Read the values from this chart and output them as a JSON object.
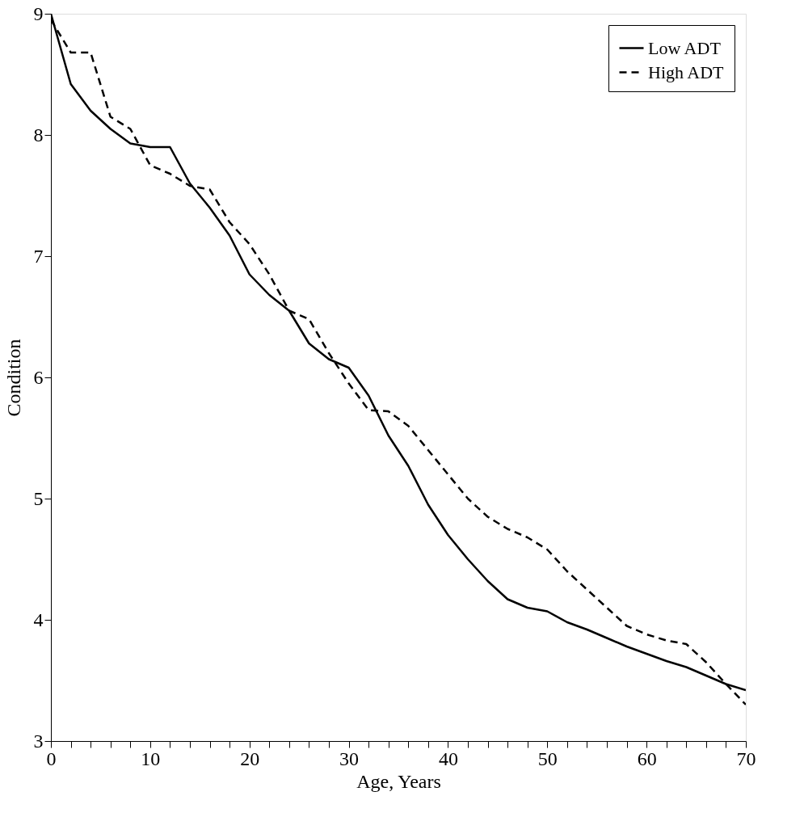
{
  "chart_data": {
    "type": "line",
    "xlabel": "Age, Years",
    "ylabel": "Condition",
    "legend": "top right",
    "x": [
      0,
      2,
      4,
      6,
      8,
      10,
      12,
      14,
      16,
      18,
      20,
      22,
      24,
      26,
      28,
      30,
      32,
      34,
      36,
      38,
      40,
      42,
      44,
      46,
      48,
      50,
      52,
      54,
      56,
      58,
      60,
      62,
      64,
      66,
      68,
      70
    ],
    "series": [
      {
        "name": "Low ADT",
        "color": "#000000",
        "line_style": "solid",
        "values": [
          9.0,
          8.42,
          8.2,
          8.05,
          7.93,
          7.9,
          7.9,
          7.6,
          7.4,
          7.17,
          6.85,
          6.68,
          6.55,
          6.28,
          6.15,
          6.08,
          5.85,
          5.52,
          5.27,
          4.95,
          4.7,
          4.5,
          4.32,
          4.17,
          4.1,
          4.07,
          3.98,
          3.92,
          3.85,
          3.78,
          3.72,
          3.66,
          3.61,
          3.54,
          3.47,
          3.42
        ]
      },
      {
        "name": "High ADT",
        "color": "#000000",
        "line_style": "dashed",
        "values": [
          8.95,
          8.68,
          8.68,
          8.15,
          8.05,
          7.75,
          7.68,
          7.58,
          7.55,
          7.28,
          7.1,
          6.85,
          6.55,
          6.48,
          6.2,
          5.95,
          5.73,
          5.72,
          5.6,
          5.4,
          5.2,
          5.0,
          4.85,
          4.75,
          4.68,
          4.58,
          4.4,
          4.25,
          4.1,
          3.95,
          3.88,
          3.83,
          3.8,
          3.65,
          3.47,
          3.3
        ]
      }
    ],
    "xlim": [
      0,
      70
    ],
    "ylim": [
      3,
      9
    ],
    "xticks": [
      0,
      {
        "value": 2,
        "label": null
      },
      {
        "value": 4,
        "label": null
      },
      {
        "value": 6,
        "label": null
      },
      {
        "value": 8,
        "label": null
      },
      10,
      {
        "value": 12,
        "label": null
      },
      {
        "value": 14,
        "label": null
      },
      {
        "value": 16,
        "label": null
      },
      {
        "value": 18,
        "label": null
      },
      20,
      {
        "value": 22,
        "label": null
      },
      {
        "value": 24,
        "label": null
      },
      {
        "value": 26,
        "label": null
      },
      {
        "value": 28,
        "label": null
      },
      30,
      {
        "value": 32,
        "label": null
      },
      {
        "value": 34,
        "label": null
      },
      {
        "value": 36,
        "label": null
      },
      {
        "value": 38,
        "label": null
      },
      40,
      {
        "value": 42,
        "label": null
      },
      {
        "value": 44,
        "label": null
      },
      {
        "value": 46,
        "label": null
      },
      {
        "value": 48,
        "label": null
      },
      50,
      {
        "value": 52,
        "label": null
      },
      {
        "value": 54,
        "label": null
      },
      {
        "value": 56,
        "label": null
      },
      {
        "value": 58,
        "label": null
      },
      60,
      {
        "value": 62,
        "label": null
      },
      {
        "value": 64,
        "label": null
      },
      {
        "value": 66,
        "label": null
      },
      {
        "value": 68,
        "label": null
      },
      70
    ],
    "yticks": [
      3,
      4,
      5,
      6,
      7,
      8,
      9
    ],
    "grid": false
  }
}
